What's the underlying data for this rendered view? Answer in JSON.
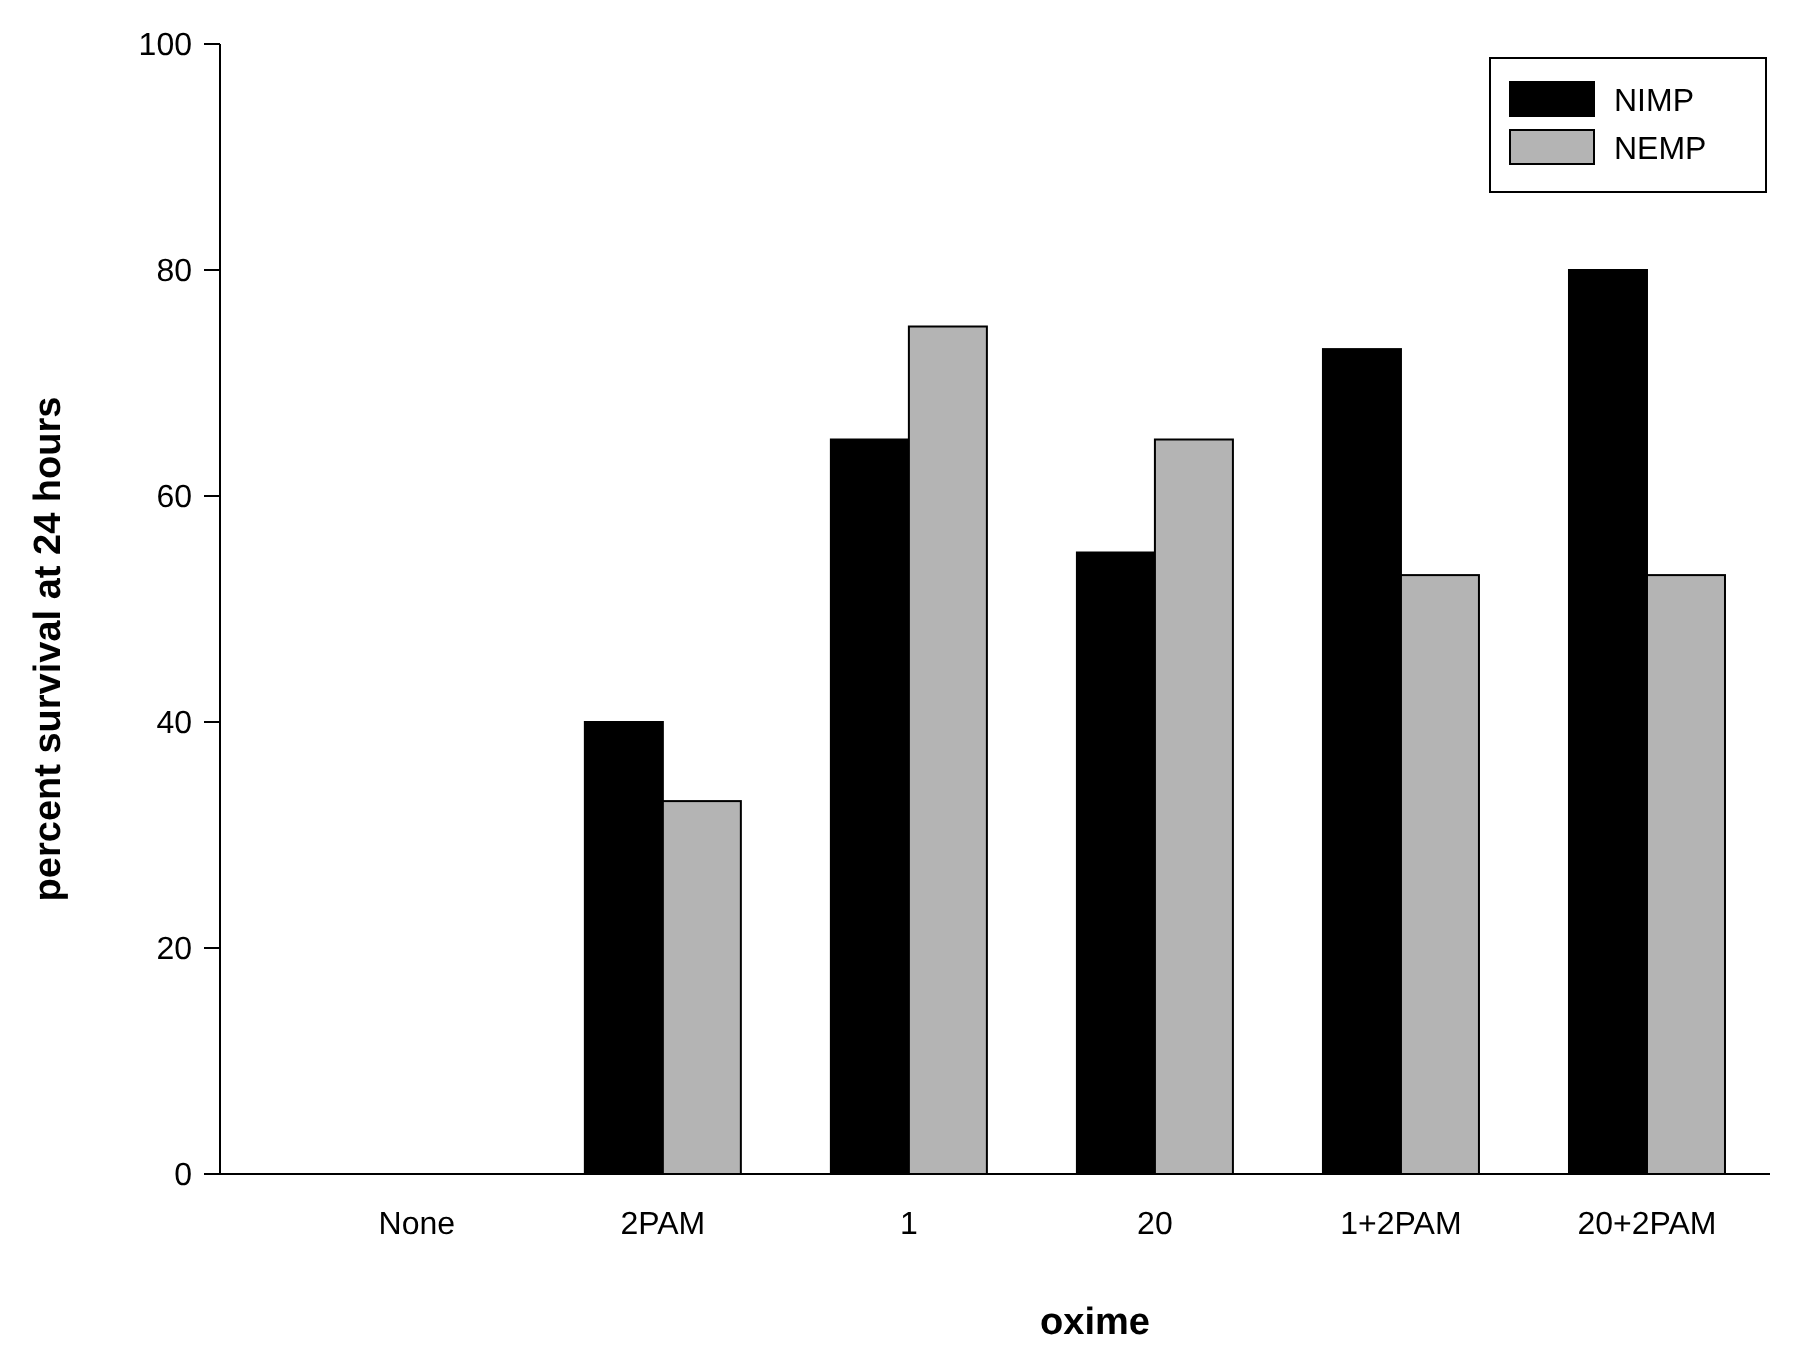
{
  "chart_data": {
    "type": "bar",
    "xlabel": "oxime",
    "ylabel": "percent survival at 24 hours",
    "categories": [
      "None",
      "2PAM",
      "1",
      "20",
      "1+2PAM",
      "20+2PAM"
    ],
    "series": [
      {
        "name": "NIMP",
        "color": "#000000",
        "values": [
          0,
          40,
          65,
          55,
          73,
          80
        ]
      },
      {
        "name": "NEMP",
        "color": "#b4b4b4",
        "values": [
          0,
          33,
          75,
          65,
          53,
          53
        ]
      }
    ],
    "ylim": [
      0,
      100
    ],
    "yticks": [
      0,
      20,
      40,
      60,
      80,
      100
    ],
    "grid": false,
    "legend": "top right"
  }
}
